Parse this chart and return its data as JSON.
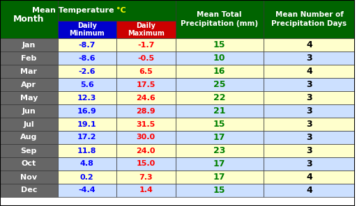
{
  "months": [
    "Jan",
    "Feb",
    "Mar",
    "Apr",
    "May",
    "Jun",
    "Jul",
    "Aug",
    "Sep",
    "Oct",
    "Nov",
    "Dec"
  ],
  "daily_min": [
    -8.7,
    -8.6,
    -2.6,
    5.6,
    12.3,
    16.9,
    19.1,
    17.2,
    11.8,
    4.8,
    0.2,
    -4.4
  ],
  "daily_max": [
    -1.7,
    -0.5,
    6.5,
    17.5,
    24.6,
    28.9,
    31.5,
    30.0,
    24.0,
    15.0,
    7.3,
    1.4
  ],
  "precipitation": [
    15,
    10,
    16,
    25,
    22,
    21,
    15,
    17,
    23,
    17,
    17,
    15
  ],
  "precip_days": [
    4,
    3,
    4,
    3,
    3,
    3,
    3,
    3,
    3,
    3,
    4,
    4
  ],
  "header_bg": "#006400",
  "header_text": "#ffffff",
  "min_col_bg": "#0000cc",
  "max_col_bg": "#cc0000",
  "subheader_text": "#ffffff",
  "month_col_bg": "#666666",
  "month_col_text": "#ffffff",
  "row_bg_odd": "#ffffcc",
  "row_bg_even": "#cce0ff",
  "min_text_color": "#0000ff",
  "max_text_color": "#ff0000",
  "precip_text_color": "#008000",
  "precip_days_text_color": "#000000",
  "title_temp_color": "#ffff00",
  "border_color": "#000000",
  "table_border_color": "#333333"
}
